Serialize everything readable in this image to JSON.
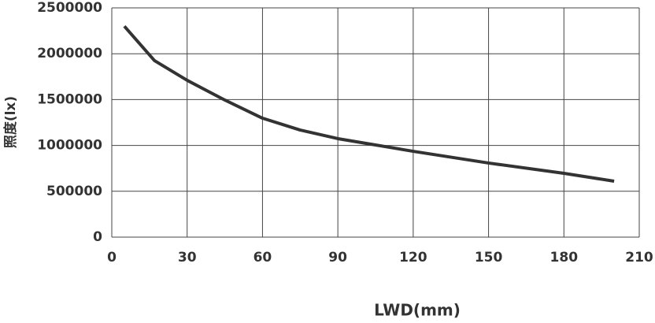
{
  "chart_data": {
    "type": "line",
    "x_label": "LWD(mm)",
    "y_label": "照度(lx)",
    "x": [
      5,
      17,
      30,
      45,
      60,
      75,
      90,
      105,
      120,
      150,
      180,
      200
    ],
    "series": [
      {
        "name": null,
        "color": "#333333",
        "values": [
          2300000,
          1925000,
          1710000,
          1495000,
          1297000,
          1168000,
          1074000,
          1005000,
          936000,
          808000,
          696000,
          610000
        ]
      }
    ],
    "xlim": [
      0,
      210
    ],
    "xticks": [
      0,
      30,
      60,
      90,
      120,
      150,
      180,
      210
    ],
    "ylim": [
      0,
      2500000
    ],
    "yticks": [
      0,
      500000,
      1000000,
      1500000,
      2000000,
      2500000
    ],
    "grid": true
  }
}
